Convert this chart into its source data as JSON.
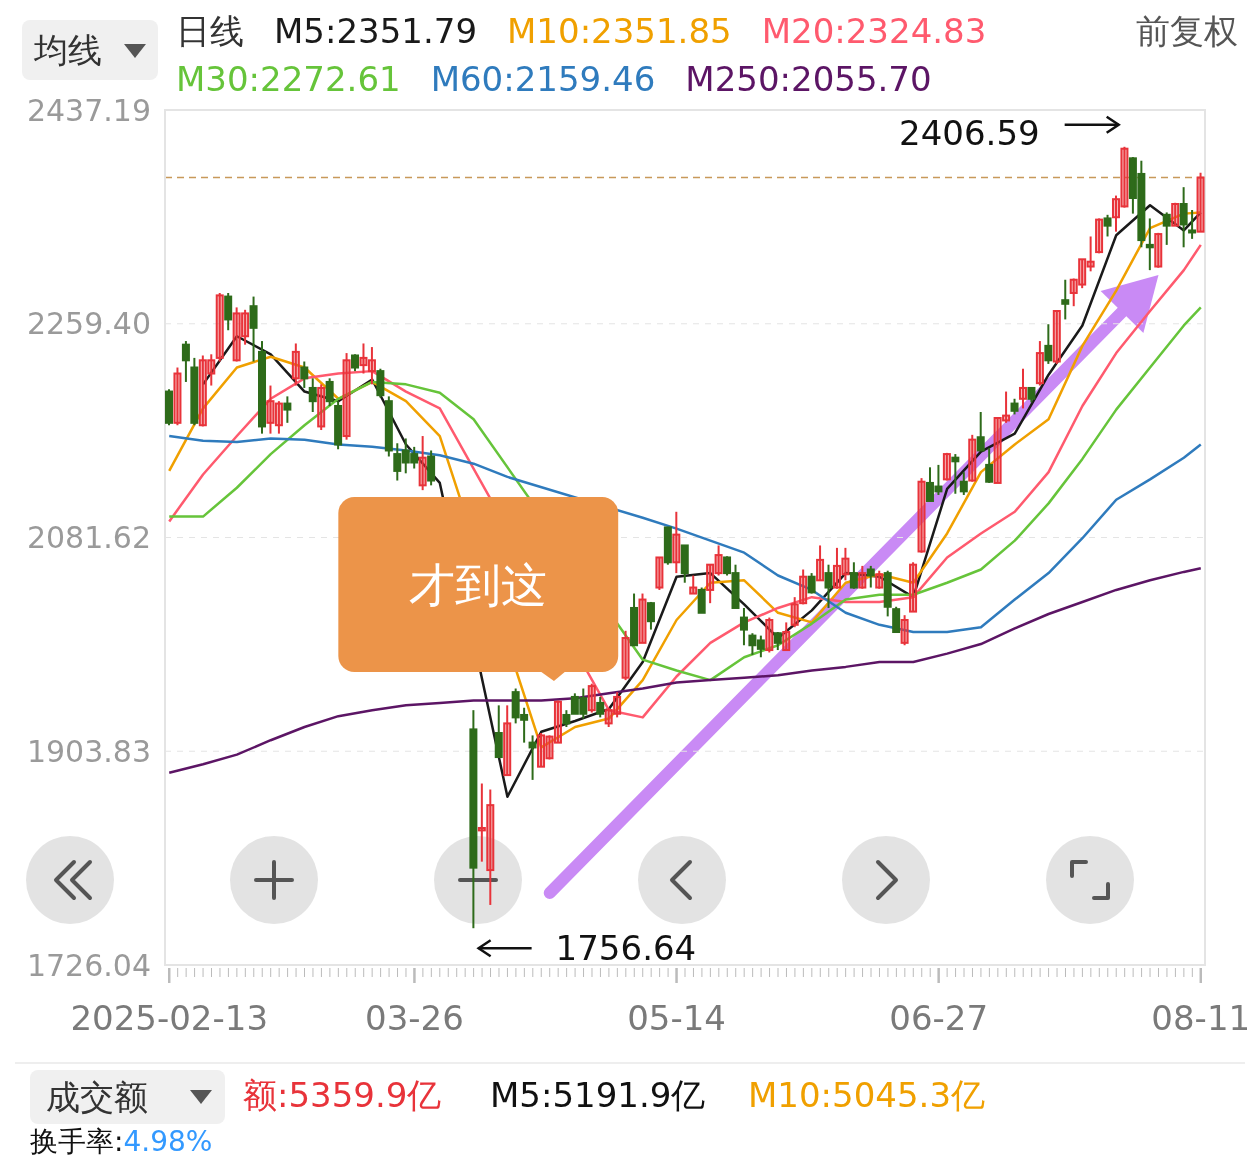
{
  "chart_data": {
    "type": "candlestick",
    "legend": "top left",
    "grid": "y",
    "categories": [
      "2025-02-13",
      null,
      null,
      null,
      null,
      null,
      null,
      null,
      null,
      null,
      null,
      null,
      null,
      null,
      null,
      null,
      null,
      null,
      null,
      null,
      null,
      null,
      null,
      null,
      null,
      null,
      null,
      null,
      null,
      "03-26",
      null,
      null,
      null,
      null,
      null,
      null,
      null,
      null,
      null,
      null,
      null,
      null,
      null,
      null,
      null,
      null,
      null,
      null,
      null,
      null,
      null,
      null,
      null,
      null,
      null,
      null,
      null,
      null,
      null,
      null,
      "05-14",
      null,
      null,
      null,
      null,
      null,
      null,
      null,
      null,
      null,
      null,
      null,
      null,
      null,
      null,
      null,
      null,
      null,
      null,
      null,
      null,
      null,
      null,
      null,
      null,
      null,
      null,
      null,
      null,
      null,
      null,
      "06-27",
      null,
      null,
      null,
      null,
      null,
      null,
      null,
      null,
      null,
      null,
      null,
      null,
      null,
      null,
      null,
      null,
      null,
      null,
      null,
      null,
      null,
      null,
      null,
      null,
      null,
      null,
      null,
      null,
      null,
      null,
      "08-11"
    ],
    "ohlc": [
      [
        2203,
        2205,
        2175,
        2177
      ],
      [
        2177,
        2223,
        2175,
        2218
      ],
      [
        2242,
        2245,
        2211,
        2229
      ],
      [
        2223,
        2231,
        2175,
        2177
      ],
      [
        2175,
        2233,
        2174,
        2229
      ],
      [
        2218,
        2234,
        2208,
        2229
      ],
      [
        2231,
        2285,
        2228,
        2283
      ],
      [
        2282,
        2285,
        2254,
        2263
      ],
      [
        2229,
        2273,
        2228,
        2268
      ],
      [
        2249,
        2271,
        2242,
        2268
      ],
      [
        2274,
        2282,
        2228,
        2256
      ],
      [
        2236,
        2245,
        2168,
        2174
      ],
      [
        2177,
        2208,
        2168,
        2195
      ],
      [
        2175,
        2195,
        2168,
        2193
      ],
      [
        2193,
        2199,
        2177,
        2188
      ],
      [
        2214,
        2243,
        2208,
        2236
      ],
      [
        2223,
        2228,
        2206,
        2214
      ],
      [
        2206,
        2214,
        2186,
        2195
      ],
      [
        2174,
        2209,
        2171,
        2206
      ],
      [
        2211,
        2214,
        2191,
        2195
      ],
      [
        2191,
        2195,
        2155,
        2159
      ],
      [
        2166,
        2235,
        2163,
        2229
      ],
      [
        2233,
        2234,
        2220,
        2223
      ],
      [
        2225,
        2243,
        2218,
        2231
      ],
      [
        2220,
        2240,
        2209,
        2229
      ],
      [
        2220,
        2222,
        2198,
        2200
      ],
      [
        2195,
        2199,
        2149,
        2154
      ],
      [
        2151,
        2160,
        2129,
        2137
      ],
      [
        2154,
        2164,
        2135,
        2144
      ],
      [
        2151,
        2157,
        2139,
        2144
      ],
      [
        2125,
        2166,
        2121,
        2148
      ],
      [
        2149,
        2154,
        2125,
        2129
      ],
      null,
      null,
      null,
      null,
      [
        1922,
        1938,
        1756.64,
        1807
      ],
      [
        1838,
        1877,
        1812,
        1840
      ],
      [
        1805,
        1872,
        1776,
        1859
      ],
      [
        1919,
        1942,
        1899,
        1899
      ],
      [
        1884,
        1942,
        1884,
        1927
      ],
      [
        1953,
        1956,
        1927,
        1932
      ],
      [
        1934,
        1940,
        1911,
        1930
      ],
      [
        1911,
        1917,
        1880,
        1907
      ],
      [
        1891,
        1919,
        1891,
        1917
      ],
      [
        1898,
        1917,
        1897,
        1916
      ],
      [
        1911,
        1946,
        1911,
        1945
      ],
      [
        1934,
        1938,
        1924,
        1927
      ],
      [
        1949,
        1952,
        1935,
        1935
      ],
      [
        1948,
        1956,
        1931,
        1935
      ],
      [
        1938,
        1960,
        1936,
        1958
      ],
      [
        1944,
        1949,
        1932,
        1935
      ],
      [
        1927,
        1940,
        1924,
        1938
      ],
      [
        1935,
        1953,
        1932,
        1949
      ],
      [
        1965,
        2004,
        1963,
        1998
      ],
      [
        2023,
        2035,
        1992,
        1992
      ],
      [
        1994,
        2035,
        1994,
        2030
      ],
      [
        2027,
        2028,
        2005,
        2012
      ],
      [
        2040,
        2065,
        2038,
        2065
      ],
      [
        2090,
        2090,
        2059,
        2061
      ],
      [
        2061,
        2103,
        2052,
        2084
      ],
      [
        2075,
        2075,
        2044,
        2052
      ],
      [
        2035,
        2050,
        2035,
        2040
      ],
      [
        2038,
        2040,
        2019,
        2019
      ],
      [
        2038,
        2059,
        2027,
        2059
      ],
      [
        2052,
        2075,
        2050,
        2067
      ],
      [
        2065,
        2066,
        2050,
        2052
      ],
      [
        2052,
        2059,
        2023,
        2023
      ],
      [
        2015,
        2023,
        1992,
        2005
      ],
      [
        2000,
        2002,
        1984,
        1992
      ],
      [
        1996,
        2000,
        1982,
        1989
      ],
      [
        1988,
        2015,
        1986,
        2013
      ],
      [
        2002,
        2003,
        1988,
        1994
      ],
      [
        1988,
        2011,
        1988,
        2003
      ],
      [
        2009,
        2032,
        2007,
        2026
      ],
      [
        2027,
        2055,
        2026,
        2049
      ],
      [
        2049,
        2052,
        2035,
        2036
      ],
      [
        2046,
        2075,
        2046,
        2063
      ],
      [
        2052,
        2059,
        2023,
        2040
      ],
      [
        2040,
        2073,
        2039,
        2058
      ],
      [
        2051,
        2073,
        2046,
        2064
      ],
      [
        2052,
        2061,
        2039,
        2040
      ],
      [
        2040,
        2058,
        2039,
        2052
      ],
      [
        2055,
        2058,
        2040,
        2050
      ],
      [
        2040,
        2054,
        2039,
        2051
      ],
      [
        2052,
        2054,
        2016,
        2024
      ],
      [
        2022,
        2024,
        2003,
        2003
      ],
      [
        1994,
        2017,
        1992,
        2013
      ],
      [
        2020,
        2061,
        2020,
        2059
      ],
      [
        2070,
        2131,
        2069,
        2128
      ],
      [
        2127,
        2140,
        2112,
        2112
      ],
      [
        2124,
        2142,
        2117,
        2120
      ],
      [
        2130,
        2152,
        2129,
        2151
      ],
      [
        2148,
        2151,
        2118,
        2145
      ],
      [
        2128,
        2136,
        2117,
        2120
      ],
      [
        2129,
        2167,
        2128,
        2163
      ],
      [
        2165,
        2186,
        2154,
        2154
      ],
      [
        2142,
        2156,
        2127,
        2128
      ],
      [
        2127,
        2181,
        2127,
        2181
      ],
      [
        2179,
        2203,
        2177,
        2183
      ],
      [
        2193,
        2197,
        2184,
        2187
      ],
      [
        2197,
        2222,
        2189,
        2206
      ],
      [
        2206,
        2206,
        2194,
        2197
      ],
      [
        2210,
        2245,
        2208,
        2235
      ],
      [
        2241,
        2259,
        2226,
        2229
      ],
      [
        2228,
        2270,
        2226,
        2270
      ],
      [
        2279,
        2296,
        2263,
        2276
      ],
      [
        2285,
        2297,
        2274,
        2296
      ],
      [
        2292,
        2313,
        2289,
        2313
      ],
      [
        2307,
        2332,
        2303,
        2311
      ],
      [
        2319,
        2347,
        2318,
        2346
      ],
      [
        2347,
        2350,
        2332,
        2341
      ],
      [
        2348,
        2366,
        2336,
        2363
      ],
      [
        2357,
        2406.59,
        2356,
        2405
      ],
      [
        2397,
        2398,
        2351,
        2364
      ],
      [
        2384,
        2395,
        2323,
        2329
      ],
      [
        2325,
        2347,
        2304,
        2323
      ],
      [
        2307,
        2335,
        2306,
        2334
      ],
      [
        2350,
        2352,
        2325,
        2341
      ],
      [
        2341,
        2360,
        2341,
        2359
      ],
      [
        2359,
        2373,
        2323,
        2342
      ],
      [
        2337,
        2354,
        2330,
        2336
      ],
      [
        2336,
        2385,
        2336,
        2381
      ]
    ],
    "colors": [
      "#2e6b1a",
      "#e8333a",
      "#2e6b1a",
      "#2e6b1a",
      "#e8333a",
      "#e8333a",
      "#e8333a",
      "#2e6b1a",
      "#e8333a",
      "#e8333a",
      "#2e6b1a",
      "#2e6b1a",
      "#e8333a",
      "#e8333a",
      "#2e6b1a",
      "#e8333a",
      "#2e6b1a",
      "#2e6b1a",
      "#e8333a",
      "#2e6b1a",
      "#2e6b1a",
      "#e8333a",
      "#2e6b1a",
      "#e8333a",
      "#e8333a",
      "#2e6b1a",
      "#2e6b1a",
      "#2e6b1a",
      "#2e6b1a",
      "#2e6b1a",
      "#e8333a",
      "#2e6b1a",
      null,
      null,
      null,
      null,
      "#2e6b1a",
      "#e8333a",
      "#e8333a",
      "#2e6b1a",
      "#e8333a",
      "#2e6b1a",
      "#2e6b1a",
      "#2e6b1a",
      "#e8333a",
      "#e8333a",
      "#e8333a",
      "#2e6b1a",
      "#2e6b1a",
      "#2e6b1a",
      "#e8333a",
      "#2e6b1a",
      "#e8333a",
      "#e8333a",
      "#e8333a",
      "#2e6b1a",
      "#e8333a",
      "#2e6b1a",
      "#e8333a",
      "#2e6b1a",
      "#e8333a",
      "#2e6b1a",
      "#e8333a",
      "#2e6b1a",
      "#e8333a",
      "#e8333a",
      "#2e6b1a",
      "#2e6b1a",
      "#2e6b1a",
      "#2e6b1a",
      "#2e6b1a",
      "#e8333a",
      "#2e6b1a",
      "#e8333a",
      "#e8333a",
      "#e8333a",
      "#2e6b1a",
      "#e8333a",
      "#2e6b1a",
      "#e8333a",
      "#e8333a",
      "#2e6b1a",
      "#e8333a",
      "#2e6b1a",
      "#e8333a",
      "#2e6b1a",
      "#2e6b1a",
      "#e8333a",
      "#e8333a",
      "#e8333a",
      "#2e6b1a",
      "#2e6b1a",
      "#e8333a",
      "#2e6b1a",
      "#2e6b1a",
      "#e8333a",
      "#2e6b1a",
      "#2e6b1a",
      "#e8333a",
      "#e8333a",
      "#2e6b1a",
      "#e8333a",
      "#2e6b1a",
      "#e8333a",
      "#2e6b1a",
      "#e8333a",
      "#2e6b1a",
      "#e8333a",
      "#e8333a",
      "#e8333a",
      "#e8333a",
      "#2e6b1a",
      "#e8333a",
      "#e8333a",
      "#2e6b1a",
      "#2e6b1a",
      "#2e6b1a",
      "#e8333a",
      "#2e6b1a",
      "#e8333a",
      "#2e6b1a",
      "#2e6b1a",
      "#e8333a"
    ],
    "series": [
      {
        "name": "M5:2351.79",
        "type": "line",
        "color": "#1a1a1a",
        "values": [
          null,
          null,
          null,
          null,
          2209,
          null,
          null,
          null,
          2249,
          null,
          null,
          null,
          2234,
          null,
          null,
          null,
          2203,
          null,
          null,
          null,
          2195,
          null,
          null,
          null,
          2213,
          null,
          null,
          null,
          2159,
          null,
          null,
          null,
          2127,
          null,
          null,
          null,
          null,
          null,
          null,
          null,
          1866,
          null,
          null,
          null,
          1920,
          null,
          null,
          null,
          1929,
          null,
          null,
          null,
          1939,
          null,
          null,
          null,
          1978,
          null,
          null,
          null,
          2049,
          null,
          null,
          null,
          2052,
          null,
          null,
          null,
          2026,
          null,
          null,
          null,
          1998,
          null,
          null,
          null,
          2021,
          null,
          null,
          null,
          2052,
          null,
          null,
          null,
          2049,
          null,
          null,
          null,
          2032,
          null,
          null,
          null,
          2122,
          null,
          null,
          null,
          2153,
          null,
          null,
          null,
          2168,
          null,
          null,
          null,
          2217,
          null,
          null,
          null,
          2258,
          null,
          null,
          null,
          2333,
          null,
          null,
          null,
          2358,
          null,
          null,
          null,
          2337,
          null,
          2352
        ]
      },
      {
        "name": "M10:2351.85",
        "type": "line",
        "color": "#f0a000",
        "values": [
          2137,
          null,
          null,
          null,
          2189,
          null,
          null,
          null,
          2223,
          null,
          null,
          null,
          2232,
          null,
          null,
          null,
          2223,
          null,
          null,
          null,
          2197,
          null,
          null,
          null,
          2211,
          null,
          null,
          null,
          2195,
          null,
          null,
          null,
          2166,
          null,
          null,
          null,
          null,
          null,
          null,
          null,
          null,
          null,
          null,
          null,
          1907,
          null,
          null,
          null,
          1924,
          null,
          null,
          null,
          1931,
          null,
          null,
          null,
          1963,
          null,
          null,
          null,
          2013,
          null,
          null,
          null,
          2044,
          null,
          null,
          null,
          2046,
          null,
          null,
          null,
          2019,
          null,
          null,
          null,
          2011,
          null,
          null,
          null,
          2044,
          null,
          null,
          null,
          2051,
          null,
          null,
          null,
          2044,
          null,
          null,
          null,
          2085,
          null,
          null,
          null,
          2136,
          null,
          null,
          null,
          2159,
          null,
          null,
          null,
          2180,
          null,
          null,
          null,
          2241,
          null,
          null,
          null,
          2287,
          null,
          null,
          null,
          2339,
          null,
          null,
          null,
          2351,
          null,
          2352
        ]
      },
      {
        "name": "M20:2324.83",
        "type": "line",
        "color": "#ff5a6e",
        "values": [
          2095,
          null,
          null,
          null,
          2134,
          null,
          null,
          null,
          2166,
          null,
          null,
          null,
          2197,
          null,
          null,
          null,
          2214,
          null,
          null,
          null,
          2218,
          null,
          null,
          null,
          2220,
          null,
          null,
          null,
          2203,
          null,
          null,
          null,
          2189,
          null,
          null,
          null,
          null,
          null,
          null,
          null,
          null,
          null,
          null,
          null,
          null,
          null,
          null,
          null,
          null,
          null,
          null,
          null,
          1938,
          null,
          null,
          null,
          1932,
          null,
          null,
          null,
          1966,
          null,
          null,
          null,
          1994,
          null,
          null,
          null,
          2011,
          null,
          null,
          null,
          2023,
          null,
          null,
          null,
          2032,
          null,
          null,
          null,
          2028,
          null,
          null,
          null,
          2028,
          null,
          null,
          null,
          2032,
          null,
          null,
          null,
          2065,
          null,
          null,
          null,
          2085,
          null,
          null,
          null,
          2103,
          null,
          null,
          null,
          2136,
          null,
          null,
          null,
          2191,
          null,
          null,
          null,
          2235,
          null,
          null,
          null,
          2270,
          null,
          null,
          null,
          2304,
          null,
          2325
        ]
      },
      {
        "name": "M30:2272.61",
        "type": "line",
        "color": "#66c43a",
        "values": [
          2099,
          null,
          null,
          null,
          2099,
          null,
          null,
          null,
          2123,
          null,
          null,
          null,
          2151,
          null,
          null,
          null,
          2175,
          null,
          null,
          null,
          2197,
          null,
          null,
          null,
          2211,
          null,
          null,
          null,
          2209,
          null,
          null,
          null,
          2202,
          null,
          null,
          null,
          2180,
          null,
          null,
          null,
          null,
          null,
          null,
          null,
          null,
          null,
          null,
          null,
          null,
          null,
          null,
          null,
          null,
          null,
          null,
          null,
          1980,
          null,
          null,
          null,
          1971,
          null,
          null,
          null,
          1963,
          null,
          null,
          null,
          1982,
          null,
          null,
          null,
          1992,
          null,
          null,
          null,
          2010,
          null,
          null,
          null,
          2030,
          null,
          null,
          null,
          2034,
          null,
          null,
          null,
          2034,
          null,
          null,
          null,
          2044,
          null,
          null,
          null,
          2055,
          null,
          null,
          null,
          2079,
          null,
          null,
          null,
          2110,
          null,
          null,
          null,
          2147,
          null,
          null,
          null,
          2188,
          null,
          null,
          null,
          2223,
          null,
          null,
          null,
          2258,
          null,
          2273
        ]
      },
      {
        "name": "M60:2159.46",
        "type": "line",
        "color": "#2f7bbd",
        "values": [
          2166,
          null,
          null,
          null,
          2162,
          null,
          null,
          null,
          2161,
          null,
          null,
          null,
          2164,
          null,
          null,
          null,
          2163,
          null,
          null,
          null,
          2159,
          null,
          null,
          null,
          2157,
          null,
          null,
          null,
          2154,
          null,
          null,
          null,
          2150,
          null,
          null,
          null,
          2143,
          null,
          null,
          null,
          2132,
          null,
          null,
          null,
          null,
          null,
          null,
          null,
          null,
          null,
          null,
          null,
          null,
          null,
          null,
          null,
          2098,
          null,
          null,
          null,
          2089,
          null,
          null,
          null,
          2079,
          null,
          null,
          null,
          2069,
          null,
          null,
          null,
          2050,
          null,
          null,
          null,
          2038,
          null,
          null,
          null,
          2019,
          null,
          null,
          null,
          2009,
          null,
          null,
          null,
          2003,
          null,
          null,
          null,
          2003,
          null,
          null,
          null,
          2007,
          null,
          null,
          null,
          2030,
          null,
          null,
          null,
          2052,
          null,
          null,
          null,
          2081,
          null,
          null,
          null,
          2113,
          null,
          null,
          null,
          2130,
          null,
          null,
          null,
          2148,
          null,
          2159
        ]
      },
      {
        "name": "M250:2055.70",
        "type": "line",
        "color": "#5c1565",
        "values": [
          1886,
          null,
          null,
          null,
          1893,
          null,
          null,
          null,
          1901,
          null,
          null,
          null,
          1913,
          null,
          null,
          null,
          1924,
          null,
          null,
          null,
          1933,
          null,
          null,
          null,
          1938,
          null,
          null,
          null,
          1942,
          null,
          null,
          null,
          1944,
          null,
          null,
          null,
          1946,
          null,
          null,
          null,
          1946,
          null,
          null,
          null,
          1946,
          null,
          null,
          null,
          1948,
          null,
          null,
          null,
          1952,
          null,
          null,
          null,
          1956,
          null,
          null,
          null,
          1961,
          null,
          null,
          null,
          1963,
          null,
          null,
          null,
          1965,
          null,
          null,
          null,
          1967,
          null,
          null,
          null,
          1971,
          null,
          null,
          null,
          1974,
          null,
          null,
          null,
          1978,
          null,
          null,
          null,
          1978,
          null,
          null,
          null,
          1985,
          null,
          null,
          null,
          1993,
          null,
          null,
          null,
          2006,
          null,
          null,
          null,
          2018,
          null,
          null,
          null,
          2028,
          null,
          null,
          null,
          2038,
          null,
          null,
          null,
          2046,
          null,
          null,
          null,
          2053,
          null,
          2056
        ]
      }
    ],
    "ylim": [
      1726.04,
      2437.19
    ],
    "yticks": [
      2437.19,
      {
        "value": 2259.4,
        "label": "2259.40"
      },
      2081.62,
      1903.83,
      1726.04
    ],
    "ref_lines": [
      {
        "axis": "y",
        "value": 2381,
        "color": "#c8995a",
        "line_style": "dashed"
      }
    ],
    "annotations": [
      "才到这",
      "2406.59",
      "1756.64",
      "均线",
      "日线",
      "前复权",
      "成交额",
      "额:5359.9亿",
      "M5:5191.9亿",
      "M10:5045.3亿",
      "换手率:4.98%"
    ]
  }
}
